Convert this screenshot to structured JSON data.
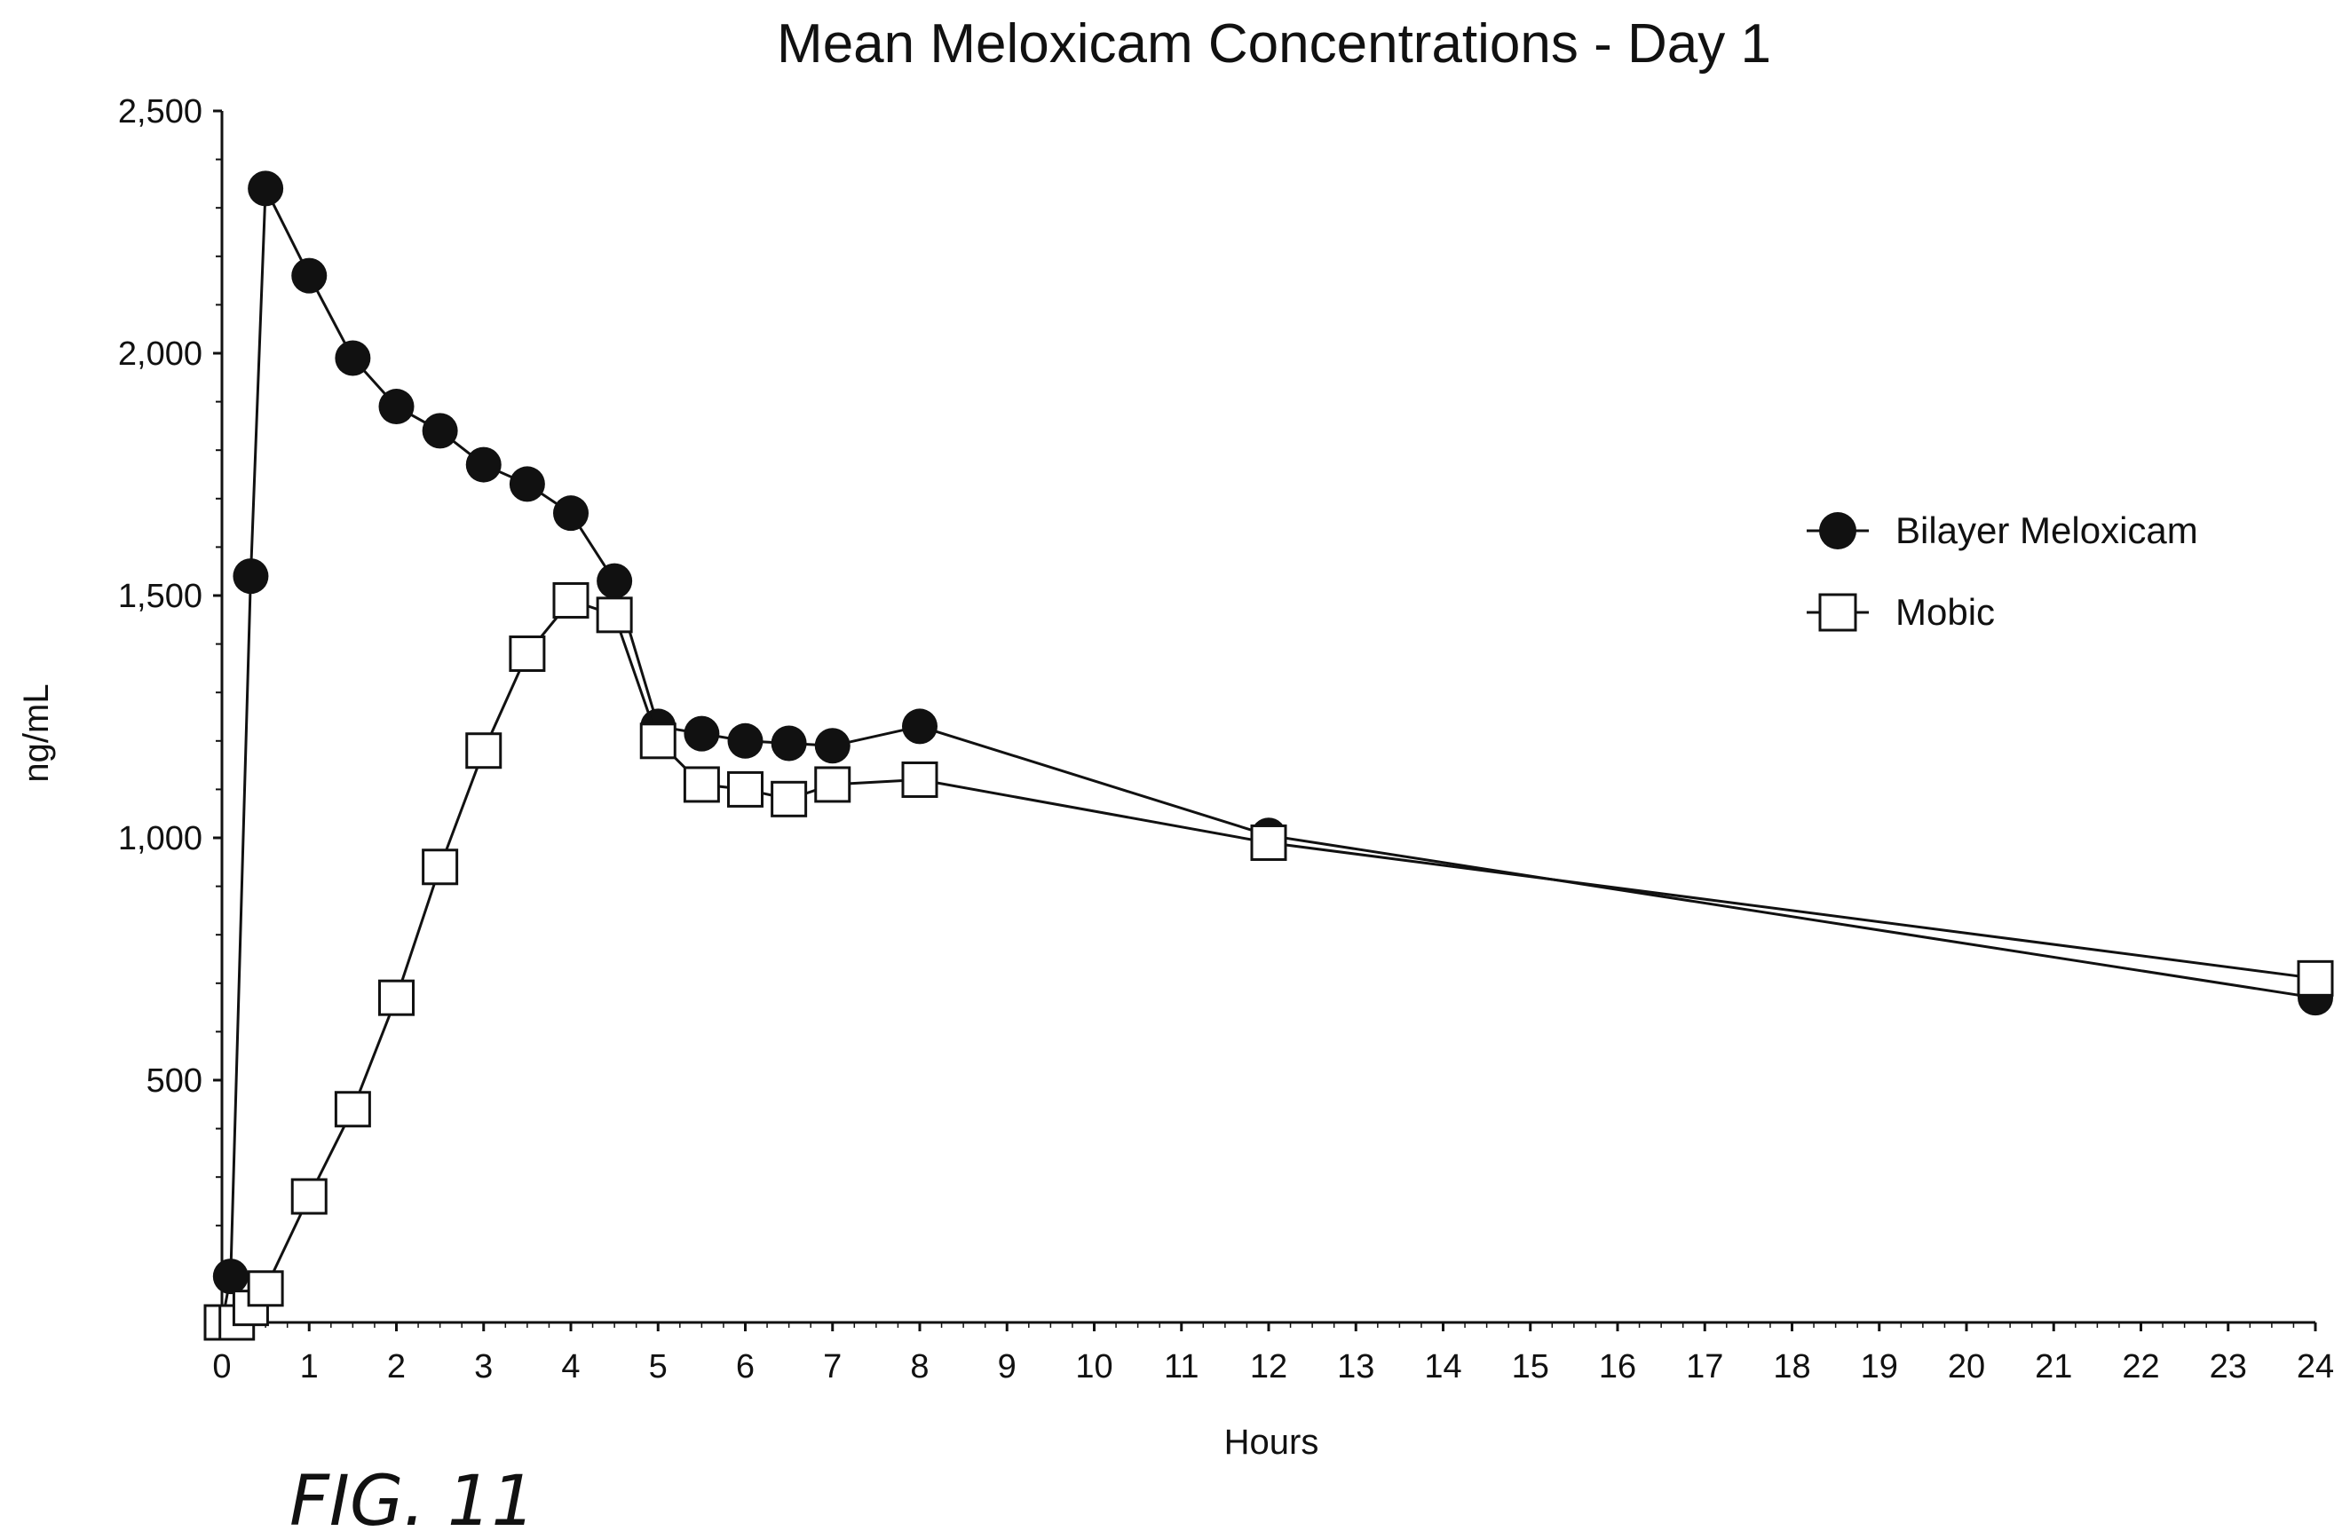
{
  "figure_label": "FIG. 11",
  "chart_data": {
    "type": "line",
    "title": "Mean Meloxicam Concentrations - Day 1",
    "xlabel": "Hours",
    "ylabel": "ng/mL",
    "xlim": [
      0,
      24
    ],
    "ylim": [
      0,
      2500
    ],
    "x_ticks": [
      0,
      1,
      2,
      3,
      4,
      5,
      6,
      7,
      8,
      9,
      10,
      11,
      12,
      13,
      14,
      15,
      16,
      17,
      18,
      19,
      20,
      21,
      22,
      23,
      24
    ],
    "y_ticks": [
      {
        "value": 500,
        "label": "500"
      },
      {
        "value": 1000,
        "label": "1,000"
      },
      {
        "value": 1500,
        "label": "1,500"
      },
      {
        "value": 2000,
        "label": "2,000"
      },
      {
        "value": 2500,
        "label": "2,500"
      }
    ],
    "grid": false,
    "legend_position": "right",
    "series": [
      {
        "name": "Bilayer Meloxicam",
        "marker": "filled-circle",
        "color": "#111111",
        "points": [
          {
            "x": 0,
            "y": 0
          },
          {
            "x": 0.1,
            "y": 95
          },
          {
            "x": 0.33,
            "y": 1540
          },
          {
            "x": 0.5,
            "y": 2340
          },
          {
            "x": 1,
            "y": 2160
          },
          {
            "x": 1.5,
            "y": 1990
          },
          {
            "x": 2,
            "y": 1890
          },
          {
            "x": 2.5,
            "y": 1840
          },
          {
            "x": 3,
            "y": 1770
          },
          {
            "x": 3.5,
            "y": 1730
          },
          {
            "x": 4,
            "y": 1670
          },
          {
            "x": 4.5,
            "y": 1530
          },
          {
            "x": 5,
            "y": 1230
          },
          {
            "x": 5.5,
            "y": 1215
          },
          {
            "x": 6,
            "y": 1200
          },
          {
            "x": 6.5,
            "y": 1195
          },
          {
            "x": 7,
            "y": 1190
          },
          {
            "x": 8,
            "y": 1230
          },
          {
            "x": 12,
            "y": 1005
          },
          {
            "x": 24,
            "y": 670
          }
        ]
      },
      {
        "name": "Mobic",
        "marker": "open-square",
        "color": "#111111",
        "points": [
          {
            "x": 0,
            "y": 0
          },
          {
            "x": 0.17,
            "y": 0
          },
          {
            "x": 0.33,
            "y": 30
          },
          {
            "x": 0.5,
            "y": 70
          },
          {
            "x": 1,
            "y": 260
          },
          {
            "x": 1.5,
            "y": 440
          },
          {
            "x": 2,
            "y": 670
          },
          {
            "x": 2.5,
            "y": 940
          },
          {
            "x": 3,
            "y": 1180
          },
          {
            "x": 3.5,
            "y": 1380
          },
          {
            "x": 4,
            "y": 1490
          },
          {
            "x": 4.5,
            "y": 1460
          },
          {
            "x": 5,
            "y": 1200
          },
          {
            "x": 5.5,
            "y": 1110
          },
          {
            "x": 6,
            "y": 1100
          },
          {
            "x": 6.5,
            "y": 1080
          },
          {
            "x": 7,
            "y": 1110
          },
          {
            "x": 8,
            "y": 1120
          },
          {
            "x": 12,
            "y": 990
          },
          {
            "x": 24,
            "y": 710
          }
        ]
      }
    ]
  }
}
